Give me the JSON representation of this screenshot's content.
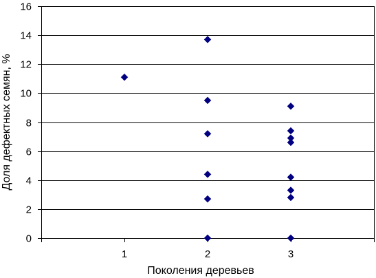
{
  "chart_data": {
    "type": "scatter",
    "title": "",
    "xlabel": "Поколения деревьев",
    "ylabel": "Доля дефектных семян, %",
    "xlim": [
      0,
      4
    ],
    "ylim": [
      0,
      16
    ],
    "xticks": [
      1,
      2,
      3
    ],
    "yticks": [
      0,
      2,
      4,
      6,
      8,
      10,
      12,
      14,
      16
    ],
    "grid": "horizontal",
    "legend": "none",
    "marker": "diamond",
    "marker_color": "#000080",
    "series": [
      {
        "points": [
          {
            "x": 1,
            "y": 11.1
          },
          {
            "x": 2,
            "y": 13.7
          },
          {
            "x": 2,
            "y": 9.5
          },
          {
            "x": 2,
            "y": 7.2
          },
          {
            "x": 2,
            "y": 4.4
          },
          {
            "x": 2,
            "y": 2.7
          },
          {
            "x": 2,
            "y": 0
          },
          {
            "x": 3,
            "y": 9.1
          },
          {
            "x": 3,
            "y": 7.4
          },
          {
            "x": 3,
            "y": 6.9
          },
          {
            "x": 3,
            "y": 6.6
          },
          {
            "x": 3,
            "y": 4.2
          },
          {
            "x": 3,
            "y": 3.3
          },
          {
            "x": 3,
            "y": 2.8
          },
          {
            "x": 3,
            "y": 0
          }
        ]
      }
    ]
  }
}
